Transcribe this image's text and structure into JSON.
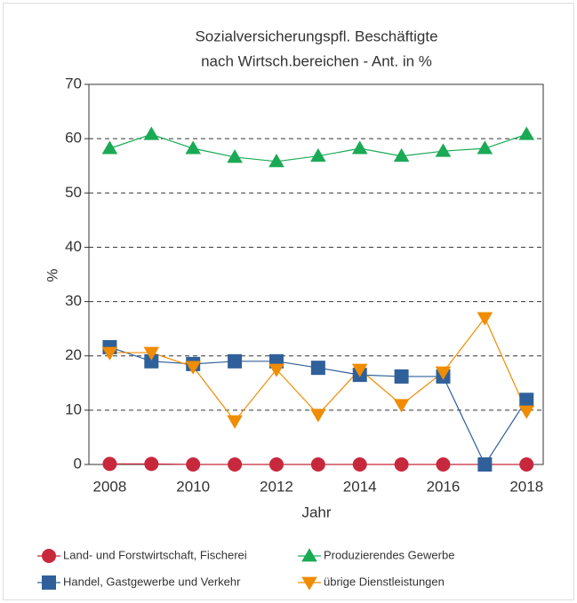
{
  "chart_data": {
    "type": "line",
    "title": [
      "Sozialversicherungspfl. Beschäftigte",
      "nach Wirtsch.bereichen - Ant. in %"
    ],
    "x_label": "Jahr",
    "y_label": "%",
    "x": [
      2008,
      2009,
      2010,
      2011,
      2012,
      2013,
      2014,
      2015,
      2016,
      2017,
      2018
    ],
    "series": [
      {
        "name": "Land- und Forstwirtschaft, Fischerei",
        "color": "#c8283c",
        "marker": "circle",
        "values": [
          0.1,
          0.1,
          0,
          0,
          0,
          0,
          0,
          0,
          0,
          0,
          0
        ]
      },
      {
        "name": "Produzierendes Gewerbe",
        "color": "#1aaa55",
        "marker": "triangle-up",
        "values": [
          58.2,
          60.8,
          58.2,
          56.6,
          55.8,
          56.8,
          58.2,
          56.8,
          57.7,
          58.2,
          60.8
        ]
      },
      {
        "name": "Handel, Gastgewerbe und Verkehr",
        "color": "#30609a",
        "marker": "square",
        "values": [
          21.6,
          19,
          18.5,
          19,
          19,
          17.8,
          16.5,
          16.2,
          16.2,
          0,
          11.9
        ]
      },
      {
        "name": "übrige Dienstleistungen",
        "color": "#f08c00",
        "marker": "triangle-down",
        "values": [
          20.6,
          20.6,
          18,
          8,
          17.5,
          9.2,
          17.5,
          11,
          17,
          27,
          9.8
        ]
      }
    ],
    "xlim": [
      2007.5,
      2018.4
    ],
    "xticks": [
      2008,
      2010,
      2012,
      2014,
      2016,
      2018
    ],
    "ylim": [
      0,
      70
    ],
    "yticks": [
      0,
      10,
      20,
      30,
      40,
      50,
      60,
      70
    ],
    "grid": true,
    "legend": "bottom"
  }
}
